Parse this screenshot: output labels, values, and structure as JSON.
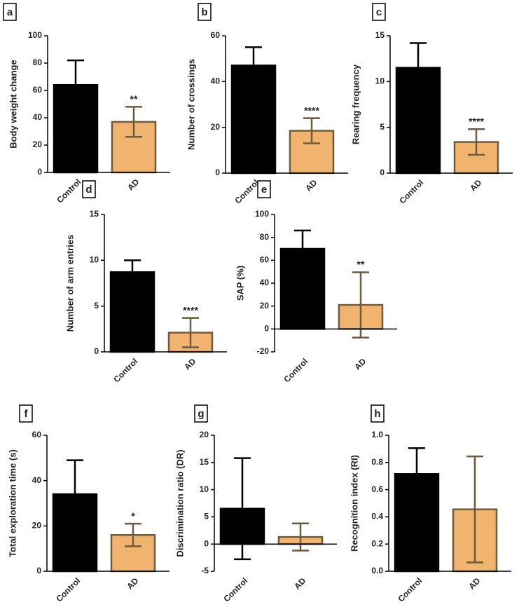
{
  "chart_data": [
    {
      "type": "bar",
      "panel_label": "a",
      "ylabel": "Body weight change",
      "categories": [
        "Control",
        "AD"
      ],
      "values": [
        64,
        37
      ],
      "errors": [
        18,
        11
      ],
      "significance": [
        null,
        "**"
      ],
      "colors": [
        "#000000",
        "#f0b46e"
      ],
      "edge_colors": [
        "#000000",
        "#6e5a3c"
      ],
      "ylim": [
        0,
        100
      ],
      "yticks": [
        0,
        20,
        40,
        60,
        80,
        100
      ]
    },
    {
      "type": "bar",
      "panel_label": "b",
      "ylabel": "Number of crossings",
      "categories": [
        "Control",
        "AD"
      ],
      "values": [
        47,
        18.5
      ],
      "errors": [
        8,
        5.5
      ],
      "significance": [
        null,
        "****"
      ],
      "colors": [
        "#000000",
        "#f0b46e"
      ],
      "edge_colors": [
        "#000000",
        "#6e5a3c"
      ],
      "ylim": [
        0,
        60
      ],
      "yticks": [
        0,
        20,
        40,
        60
      ]
    },
    {
      "type": "bar",
      "panel_label": "c",
      "ylabel": "Rearing frequency",
      "categories": [
        "Control",
        "AD"
      ],
      "values": [
        11.5,
        3.4
      ],
      "errors": [
        2.7,
        1.4
      ],
      "significance": [
        null,
        "****"
      ],
      "colors": [
        "#000000",
        "#f0b46e"
      ],
      "edge_colors": [
        "#000000",
        "#6e5a3c"
      ],
      "ylim": [
        0,
        15
      ],
      "yticks": [
        0,
        5,
        10,
        15
      ]
    },
    {
      "type": "bar",
      "panel_label": "d",
      "ylabel": "Number of arm entries",
      "categories": [
        "Control",
        "AD"
      ],
      "values": [
        8.7,
        2.1
      ],
      "errors": [
        1.3,
        1.6
      ],
      "significance": [
        null,
        "****"
      ],
      "colors": [
        "#000000",
        "#f0b46e"
      ],
      "edge_colors": [
        "#000000",
        "#6e5a3c"
      ],
      "ylim": [
        0,
        15
      ],
      "yticks": [
        0,
        5,
        10,
        15
      ]
    },
    {
      "type": "bar",
      "panel_label": "e",
      "ylabel": "SAP (%)",
      "categories": [
        "Control",
        "AD"
      ],
      "values": [
        70,
        21
      ],
      "errors": [
        16,
        28.5
      ],
      "significance": [
        null,
        "**"
      ],
      "colors": [
        "#000000",
        "#f0b46e"
      ],
      "edge_colors": [
        "#000000",
        "#6e5a3c"
      ],
      "ylim": [
        -20,
        100
      ],
      "yticks": [
        -20,
        0,
        20,
        40,
        60,
        80,
        100
      ]
    },
    {
      "type": "bar",
      "panel_label": "f",
      "ylabel": "Total exploration time (s)",
      "categories": [
        "Control",
        "AD"
      ],
      "values": [
        34,
        16
      ],
      "errors": [
        15,
        5
      ],
      "significance": [
        null,
        "*"
      ],
      "colors": [
        "#000000",
        "#f0b46e"
      ],
      "edge_colors": [
        "#000000",
        "#6e5a3c"
      ],
      "ylim": [
        0,
        60
      ],
      "yticks": [
        0,
        20,
        40,
        60
      ]
    },
    {
      "type": "bar",
      "panel_label": "g",
      "ylabel": "Discrimination ratio (DR)",
      "categories": [
        "Control",
        "AD"
      ],
      "values": [
        6.5,
        1.3
      ],
      "errors": [
        9.3,
        2.5
      ],
      "colors": [
        "#000000",
        "#f0b46e"
      ],
      "edge_colors": [
        "#000000",
        "#6e5a3c"
      ],
      "ylim": [
        -5,
        20
      ],
      "yticks": [
        -5,
        0,
        5,
        10,
        15,
        20
      ]
    },
    {
      "type": "bar",
      "panel_label": "h",
      "ylabel": "Recognition index (RI)",
      "categories": [
        "Control",
        "AD"
      ],
      "values": [
        0.715,
        0.455
      ],
      "errors": [
        0.19,
        0.39
      ],
      "colors": [
        "#000000",
        "#f0b46e"
      ],
      "edge_colors": [
        "#000000",
        "#6e5a3c"
      ],
      "ylim": [
        0,
        1
      ],
      "yticks": [
        {
          "value": 0,
          "label": "0.0"
        },
        0.2,
        0.4,
        0.6,
        0.8,
        {
          "value": 1,
          "label": "1.0"
        }
      ]
    }
  ]
}
